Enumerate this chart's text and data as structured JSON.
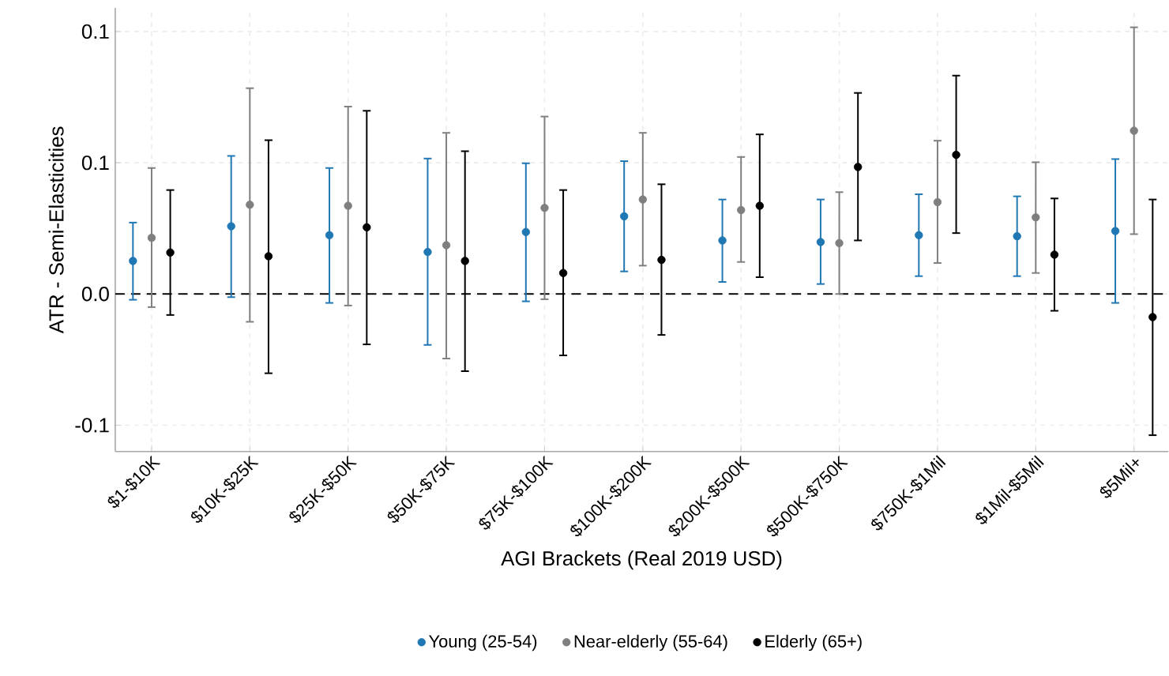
{
  "chart_data": {
    "type": "scatter",
    "xlabel": "AGI Brackets (Real 2019 USD)",
    "ylabel": "ATR - Semi-Elasticities",
    "categories": [
      "$1-$10K",
      "$10K-$25K",
      "$25K-$50K",
      "$50K-$75K",
      "$75K-$100K",
      "$100K-$200K",
      "$200K-$500K",
      "$500K-$750K",
      "$750K-$1Mil",
      "$1Mil-$5Mil",
      "$5Mil+"
    ],
    "series": [
      {
        "name": "Young (25-54)",
        "color": "#1f77b4",
        "values": [
          0.0126,
          0.0258,
          0.0224,
          0.016,
          0.0236,
          0.0296,
          0.0204,
          0.0198,
          0.0224,
          0.022,
          0.024
        ],
        "errors": [
          [
            -0.0022,
            0.0272
          ],
          [
            -0.0012,
            0.0526
          ],
          [
            -0.0034,
            0.048
          ],
          [
            -0.0194,
            0.0516
          ],
          [
            -0.0028,
            0.0498
          ],
          [
            0.0086,
            0.0506
          ],
          [
            0.0046,
            0.036
          ],
          [
            0.0038,
            0.036
          ],
          [
            0.0068,
            0.038
          ],
          [
            0.0068,
            0.0372
          ],
          [
            -0.0034,
            0.0514
          ]
        ]
      },
      {
        "name": "Near-elderly (55-64)",
        "color": "#7f7f7f",
        "values": [
          0.0214,
          0.034,
          0.0336,
          0.0186,
          0.0328,
          0.036,
          0.032,
          0.0194,
          0.035,
          0.0292,
          0.0622
        ],
        "errors": [
          [
            -0.005,
            0.048
          ],
          [
            -0.0106,
            0.0784
          ],
          [
            -0.0044,
            0.0714
          ],
          [
            -0.0246,
            0.0614
          ],
          [
            -0.002,
            0.0676
          ],
          [
            0.0108,
            0.0614
          ],
          [
            0.0122,
            0.0522
          ],
          [
            0.0,
            0.0388
          ],
          [
            0.0118,
            0.0584
          ],
          [
            0.008,
            0.0502
          ],
          [
            0.0228,
            0.1016
          ]
        ]
      },
      {
        "name": "Elderly (65+)",
        "color": "#000000",
        "values": [
          0.0158,
          0.0144,
          0.0254,
          0.0126,
          0.008,
          0.013,
          0.0336,
          0.0484,
          0.053,
          0.015,
          -0.0088
        ],
        "errors": [
          [
            -0.008,
            0.0396
          ],
          [
            -0.0302,
            0.0586
          ],
          [
            -0.0192,
            0.0698
          ],
          [
            -0.0294,
            0.0544
          ],
          [
            -0.0234,
            0.0396
          ],
          [
            -0.0156,
            0.0418
          ],
          [
            0.0064,
            0.0608
          ],
          [
            0.0204,
            0.0766
          ],
          [
            0.0232,
            0.0832
          ],
          [
            -0.0064,
            0.0364
          ],
          [
            -0.0538,
            0.036
          ]
        ]
      }
    ],
    "ylim": [
      -0.06,
      0.109
    ],
    "yticks": [
      {
        "value": -0.05,
        "label": "-0.1"
      },
      {
        "value": 0,
        "label": "0.0"
      },
      {
        "value": 0.05,
        "label": "0.1"
      },
      {
        "value": 0.1,
        "label": "0.1"
      }
    ],
    "grid": true,
    "legend": "bottom",
    "marker": "circle",
    "ref_lines": [
      {
        "axis": "y",
        "value": 0,
        "line_style": "dashed",
        "color": "#000000"
      }
    ]
  }
}
